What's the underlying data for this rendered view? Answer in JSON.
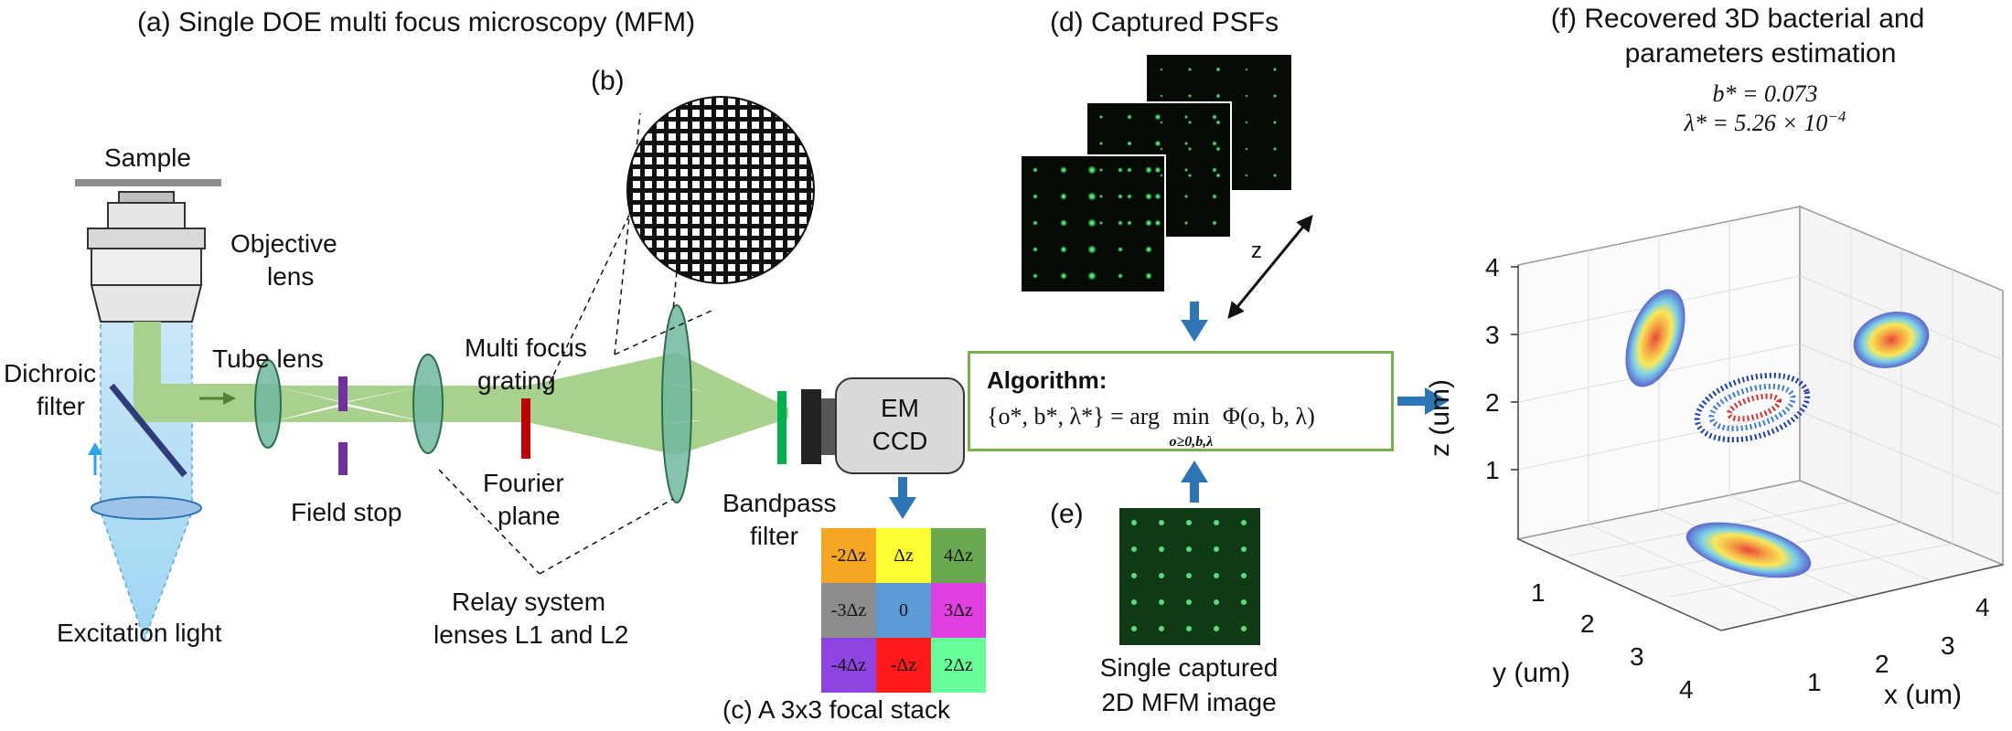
{
  "panel_a": {
    "title": "(a)  Single DOE multi focus microscopy (MFM)",
    "sample": "Sample",
    "objective_lens": [
      "Objective",
      "lens"
    ],
    "dichroic_filter": [
      "Dichroic",
      "filter"
    ],
    "tube_lens": "Tube lens",
    "field_stop": "Field stop",
    "multi_focus_grating": [
      "Multi focus",
      "grating"
    ],
    "fourier_plane": [
      "Fourier",
      "plane"
    ],
    "relay_system": [
      "Relay system",
      "lenses L1 and L2"
    ],
    "excitation_light": "Excitation light",
    "bandpass_filter": [
      "Bandpass",
      "filter"
    ],
    "camera": [
      "EM",
      "CCD"
    ]
  },
  "panel_b": {
    "label": "(b)"
  },
  "panel_c": {
    "caption": "(c)  A 3x3 focal stack",
    "cells": [
      {
        "text": "-2Δz",
        "color": "#f5a623"
      },
      {
        "text": "Δz",
        "color": "#ffff33"
      },
      {
        "text": "4Δz",
        "color": "#6aa84f"
      },
      {
        "text": "-3Δz",
        "color": "#8c8c8c"
      },
      {
        "text": "0",
        "color": "#5b9bd5"
      },
      {
        "text": "3Δz",
        "color": "#e040e0"
      },
      {
        "text": "-4Δz",
        "color": "#8e44e0"
      },
      {
        "text": "-Δz",
        "color": "#ff1a1a"
      },
      {
        "text": "2Δz",
        "color": "#66ff99"
      }
    ]
  },
  "panel_d": {
    "title": "(d)  Captured PSFs",
    "z_label": "z"
  },
  "panel_e": {
    "label": "(e)",
    "caption": [
      "Single captured",
      "2D MFM image"
    ]
  },
  "algorithm": {
    "title": "Algorithm:",
    "lhs": "{o*, b*, λ*} = arg",
    "op": "min",
    "op_sub": "o≥0,b,λ",
    "rhs": "Φ(o, b, λ)"
  },
  "panel_f": {
    "title": [
      "(f)   Recovered 3D bacterial and",
      "parameters estimation"
    ],
    "b_est": "b* = 0.073",
    "lambda_est": "λ* = 5.26 × 10",
    "lambda_exp": "−4",
    "zlabel": "z (um)",
    "ylabel": "y (um)",
    "xlabel": "x (um)",
    "z_ticks": [
      "1",
      "2",
      "3",
      "4"
    ],
    "y_ticks": [
      "1",
      "2",
      "3",
      "4"
    ],
    "x_ticks": [
      "1",
      "2",
      "3",
      "4"
    ]
  },
  "colors": {
    "beam": "#a9d18e",
    "lens_fill": "#70b8a0",
    "arrow_blue": "#2e75b6",
    "stop_purple": "#7030a0",
    "grating_red": "#c00000",
    "filter_green": "#00b050",
    "box_green": "#78b04a"
  }
}
